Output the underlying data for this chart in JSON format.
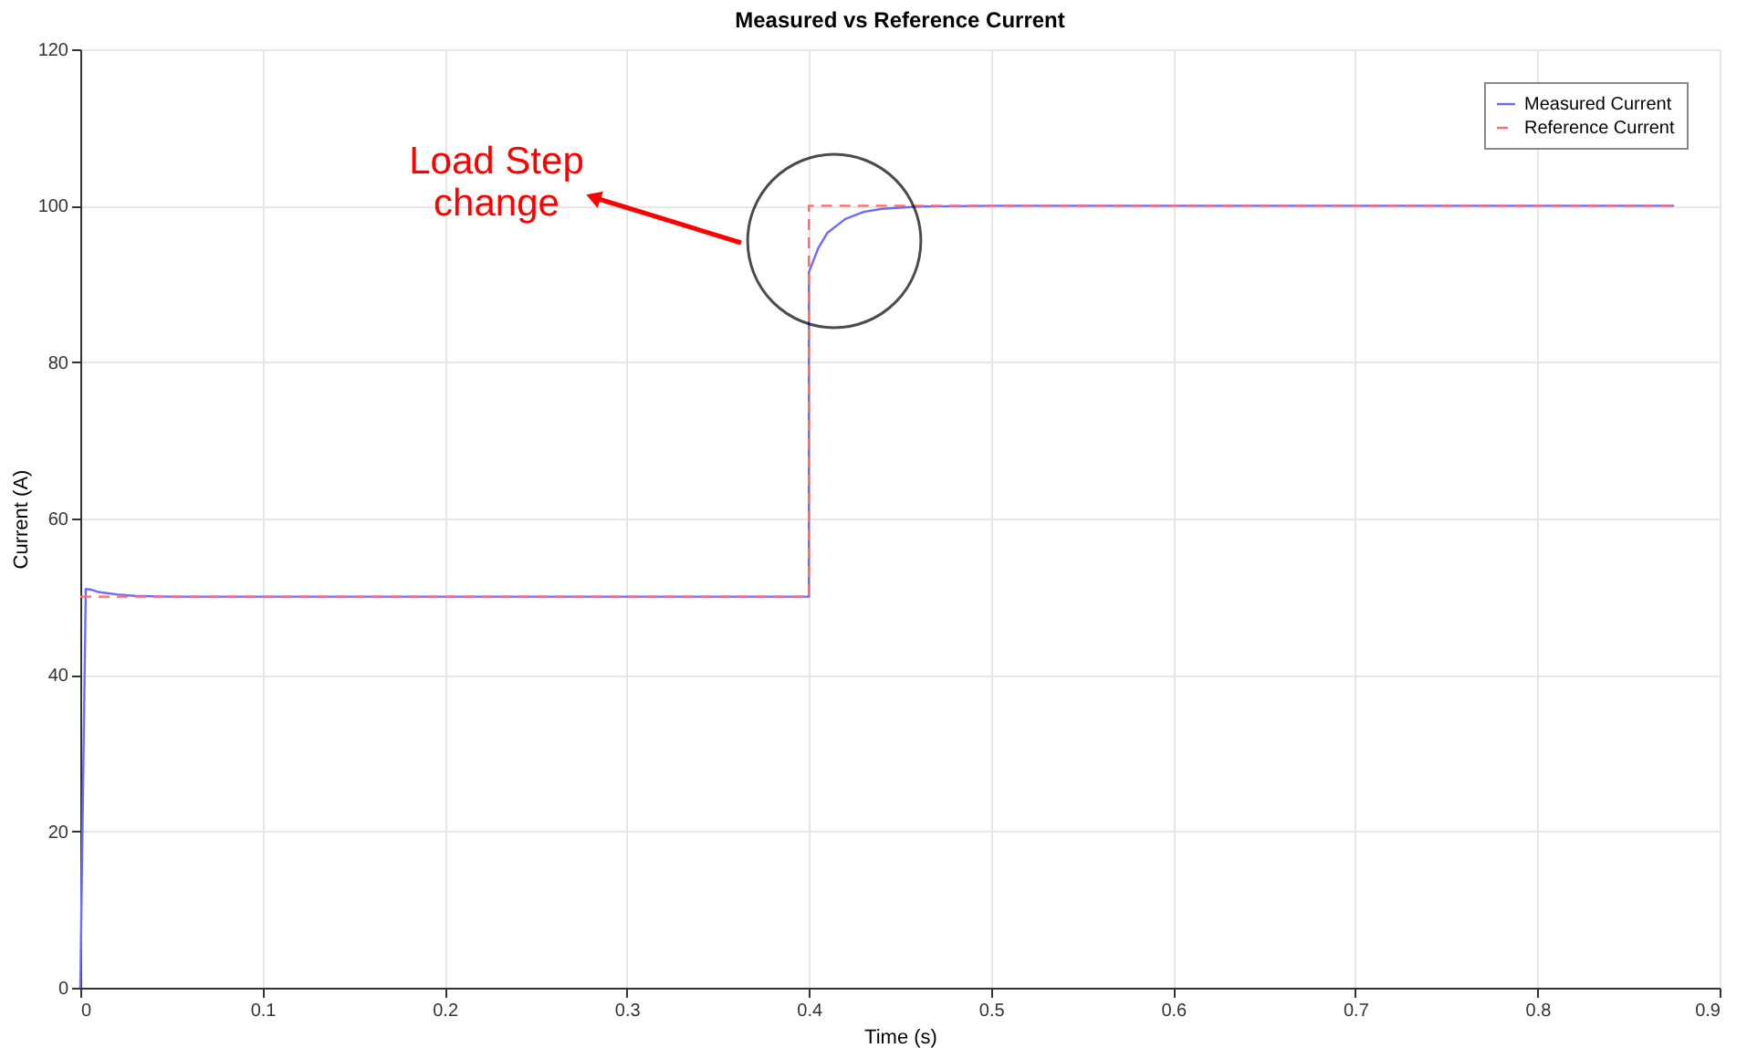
{
  "chart_data": {
    "type": "line",
    "title": "Measured vs Reference Current",
    "xlabel": "Time (s)",
    "ylabel": "Current (A)",
    "xlim": [
      0,
      0.9
    ],
    "xticks": [
      0,
      0.1,
      0.2,
      0.3,
      0.4,
      0.5,
      0.6,
      0.7,
      0.8,
      0.9
    ],
    "ylim": [
      0,
      120
    ],
    "yticks": [
      0,
      20,
      40,
      60,
      80,
      100,
      120
    ],
    "grid": true,
    "legend": "top right",
    "series": [
      {
        "name": "Measured Current",
        "color": "#6b6bff",
        "line_style": "solid",
        "x": [
          0,
          0.003,
          0.006,
          0.01,
          0.02,
          0.03,
          0.05,
          0.4,
          0.4,
          0.405,
          0.41,
          0.42,
          0.43,
          0.44,
          0.46,
          0.5,
          0.875
        ],
        "values": [
          0,
          51,
          50.9,
          50.6,
          50.3,
          50.1,
          50,
          50,
          91.5,
          94.5,
          96.5,
          98.3,
          99.2,
          99.6,
          99.9,
          100,
          100
        ]
      },
      {
        "name": "Reference Current",
        "color": "#ff6b6b",
        "line_style": "dashed",
        "x": [
          0,
          0.4,
          0.4,
          0.875
        ],
        "values": [
          50,
          50,
          100,
          100
        ]
      }
    ],
    "annotations": [
      "Load Step\nchange"
    ]
  }
}
